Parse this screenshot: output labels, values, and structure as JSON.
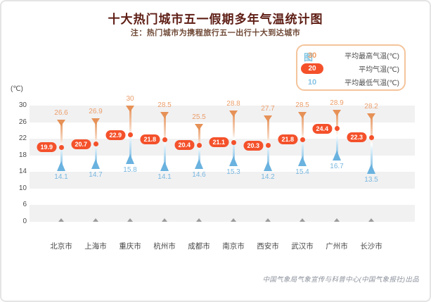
{
  "title": "十大热门城市五一假期多年气温统计图",
  "subtitle": "注：热门城市为携程旅行五一出行十大到达城市",
  "unit_label": "(℃)",
  "legend": {
    "title": "图例",
    "items": [
      {
        "value": "30",
        "label": "平均最高气温(℃)",
        "type": "max"
      },
      {
        "value": "20",
        "label": "平均气温(℃)",
        "type": "avg"
      },
      {
        "value": "10",
        "label": "平均最低气温(℃)",
        "type": "min"
      }
    ]
  },
  "footer": "中国气象局气象宣传与科普中心(中国气象报社)出品",
  "chart_data": {
    "type": "scatter",
    "subtype": "floating-range-thermometer",
    "categories": [
      "北京市",
      "上海市",
      "重庆市",
      "杭州市",
      "成都市",
      "南京市",
      "西安市",
      "武汉市",
      "广州市",
      "长沙市"
    ],
    "series": [
      {
        "name": "平均最高气温(℃)",
        "values": [
          26.6,
          26.9,
          30,
          28.5,
          25.5,
          28.8,
          27.7,
          28.5,
          28.9,
          28.2
        ]
      },
      {
        "name": "平均气温(℃)",
        "values": [
          19.9,
          20.7,
          22.9,
          21.8,
          20.4,
          21.1,
          20.3,
          21.8,
          24.4,
          22.3
        ]
      },
      {
        "name": "平均最低气温(℃)",
        "values": [
          14.1,
          14.7,
          15.8,
          14.1,
          14.6,
          15.3,
          14.2,
          15.4,
          16.7,
          13.5
        ]
      }
    ],
    "yticks": [
      30,
      26,
      22,
      18,
      14,
      10,
      6,
      0
    ],
    "ylabel": "(℃)",
    "ylim": [
      0,
      32
    ],
    "axis_break_below": 6,
    "gray_bands": [
      [
        30,
        26
      ],
      [
        22,
        18
      ],
      [
        14,
        10
      ],
      [
        6,
        0
      ]
    ],
    "grid": false,
    "legend_position": "top-right"
  },
  "colors": {
    "title": "#5e1e15",
    "subtitle": "#6e4835",
    "max": "#e69157",
    "max_label": "#eb9e6a",
    "min": "#6ab2df",
    "min_label": "#78b7de",
    "avg_pill": "#f4512b",
    "band": "#f1f1f2",
    "legend_border": "#f4c49c",
    "legend_title": "#80c4e1",
    "footer": "#8d939d"
  }
}
